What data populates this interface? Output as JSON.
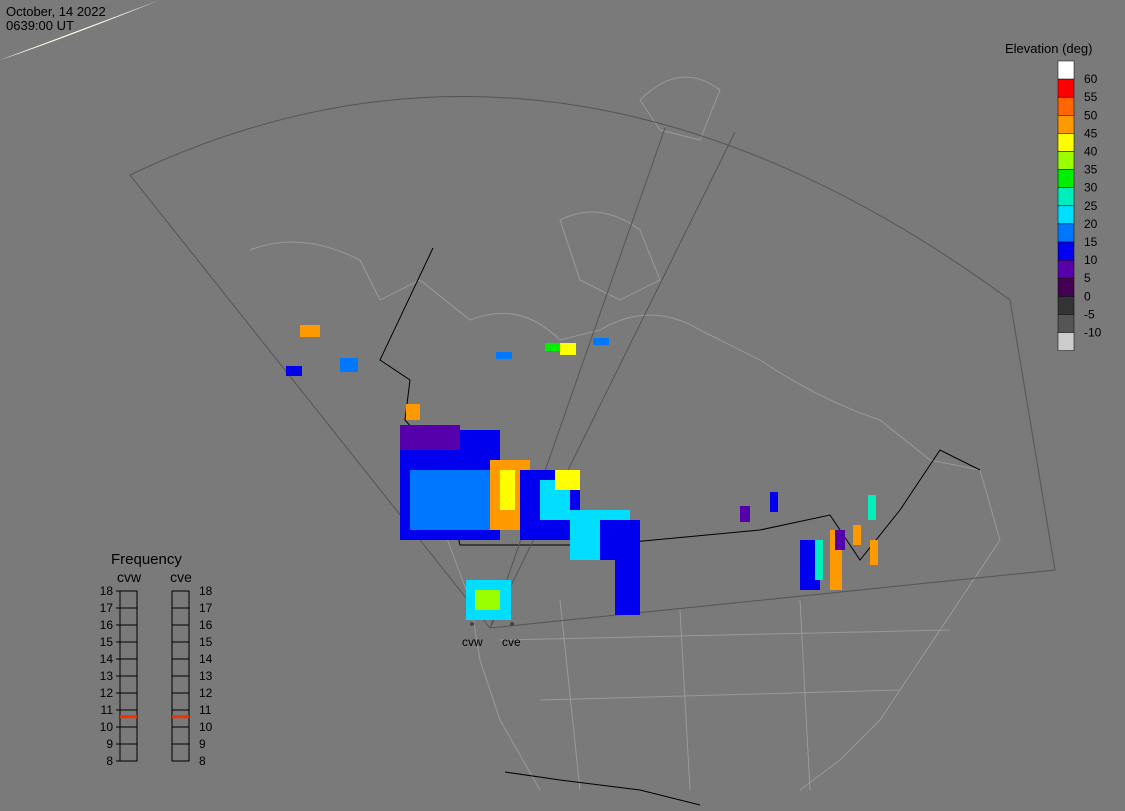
{
  "header": {
    "date": "October, 14 2022",
    "time": "0639:00 UT"
  },
  "colorbar": {
    "title": "Elevation (deg)",
    "ticks": [
      60,
      55,
      50,
      45,
      40,
      35,
      30,
      25,
      20,
      15,
      10,
      5,
      0,
      -5,
      -10
    ],
    "colors": [
      "#ffffff",
      "#ff0000",
      "#ff6600",
      "#ff9900",
      "#ffff00",
      "#99ff00",
      "#00ee00",
      "#00eebb",
      "#00ddff",
      "#0077ff",
      "#0000ee",
      "#5500aa",
      "#440055",
      "#333333",
      "#555555",
      "#cccccc"
    ]
  },
  "frequency": {
    "title": "Frequency",
    "radars": [
      {
        "name": "cvw",
        "value": 10.6
      },
      {
        "name": "cve",
        "value": 10.6
      }
    ],
    "ticks": [
      18,
      17,
      16,
      15,
      14,
      13,
      12,
      11,
      10,
      9,
      8
    ],
    "marker_color": "#ee3300"
  },
  "sites": [
    "cvw",
    "cve"
  ]
}
